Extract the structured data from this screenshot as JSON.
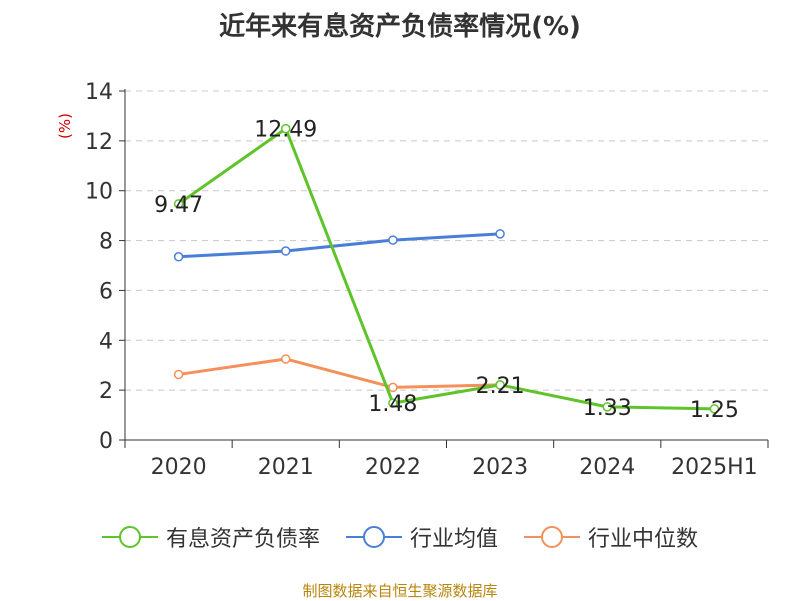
{
  "title": "近年来有息资产负债率情况(%)",
  "source_note": "制图数据来自恒生聚源数据库",
  "colors": {
    "green": "#5fc42b",
    "blue": "#4a7fd8",
    "orange": "#f5905a",
    "axis": "#333333",
    "grid": "#c8c8c8"
  },
  "chart_data": {
    "type": "line",
    "title": "近年来有息资产负债率情况(%)",
    "ylabel": "(%)",
    "ylim": [
      0,
      14
    ],
    "yticks": [
      "0",
      "2",
      "4",
      "6",
      "8",
      "10",
      "12",
      "14"
    ],
    "categories": [
      "2020",
      "2021",
      "2022",
      "2023",
      "2024",
      "2025H1"
    ],
    "grid": "horizontal-dashed",
    "legend_position": "bottom",
    "series": [
      {
        "name": "有息资产负债率",
        "color": "#5fc42b",
        "values": [
          9.47,
          12.49,
          1.48,
          2.21,
          1.33,
          1.25
        ],
        "show_labels": true
      },
      {
        "name": "行业均值",
        "color": "#4a7fd8",
        "values": [
          7.35,
          7.58,
          8.02,
          8.27,
          null,
          null
        ],
        "show_labels": false
      },
      {
        "name": "行业中位数",
        "color": "#f5905a",
        "values": [
          2.63,
          3.25,
          2.11,
          2.21,
          null,
          null
        ],
        "show_labels": false
      }
    ],
    "data_labels": [
      "9.47",
      "12.49",
      "1.48",
      "2.21",
      "1.33",
      "1.25"
    ]
  }
}
